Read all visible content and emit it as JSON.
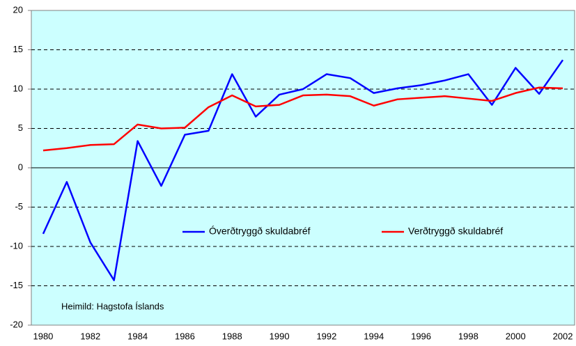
{
  "chart_data": {
    "type": "line",
    "categories": [
      "1980",
      null,
      "1982",
      null,
      "1984",
      null,
      "1986",
      null,
      "1988",
      null,
      "1990",
      null,
      "1992",
      null,
      "1994",
      null,
      "1996",
      null,
      "1998",
      null,
      "2000",
      null,
      "2002"
    ],
    "series": [
      {
        "name": "Óverðtryggð skuldabréf",
        "color": "#0000ff",
        "values": [
          -8.4,
          -1.8,
          -9.5,
          -14.3,
          3.4,
          -2.3,
          4.2,
          4.7,
          11.9,
          6.5,
          9.3,
          10.0,
          11.9,
          11.4,
          9.5,
          10.1,
          10.5,
          11.1,
          11.9,
          8.0,
          12.7,
          9.4,
          13.7
        ]
      },
      {
        "name": "Verðtryggð skuldabréf",
        "color": "#ff0000",
        "values": [
          2.2,
          2.5,
          2.9,
          3.0,
          5.5,
          5.0,
          5.1,
          7.7,
          9.2,
          7.8,
          8.0,
          9.2,
          9.3,
          9.1,
          7.9,
          8.7,
          8.9,
          9.1,
          8.8,
          8.5,
          9.5,
          10.2,
          10.1
        ]
      }
    ],
    "ylim": [
      -20,
      20
    ],
    "yticks": [
      20,
      15,
      10,
      5,
      0,
      -5,
      -10,
      -15,
      -20
    ],
    "grid": true,
    "annotation": "Heimild: Hagstofa Íslands",
    "background": "#ccffff"
  }
}
